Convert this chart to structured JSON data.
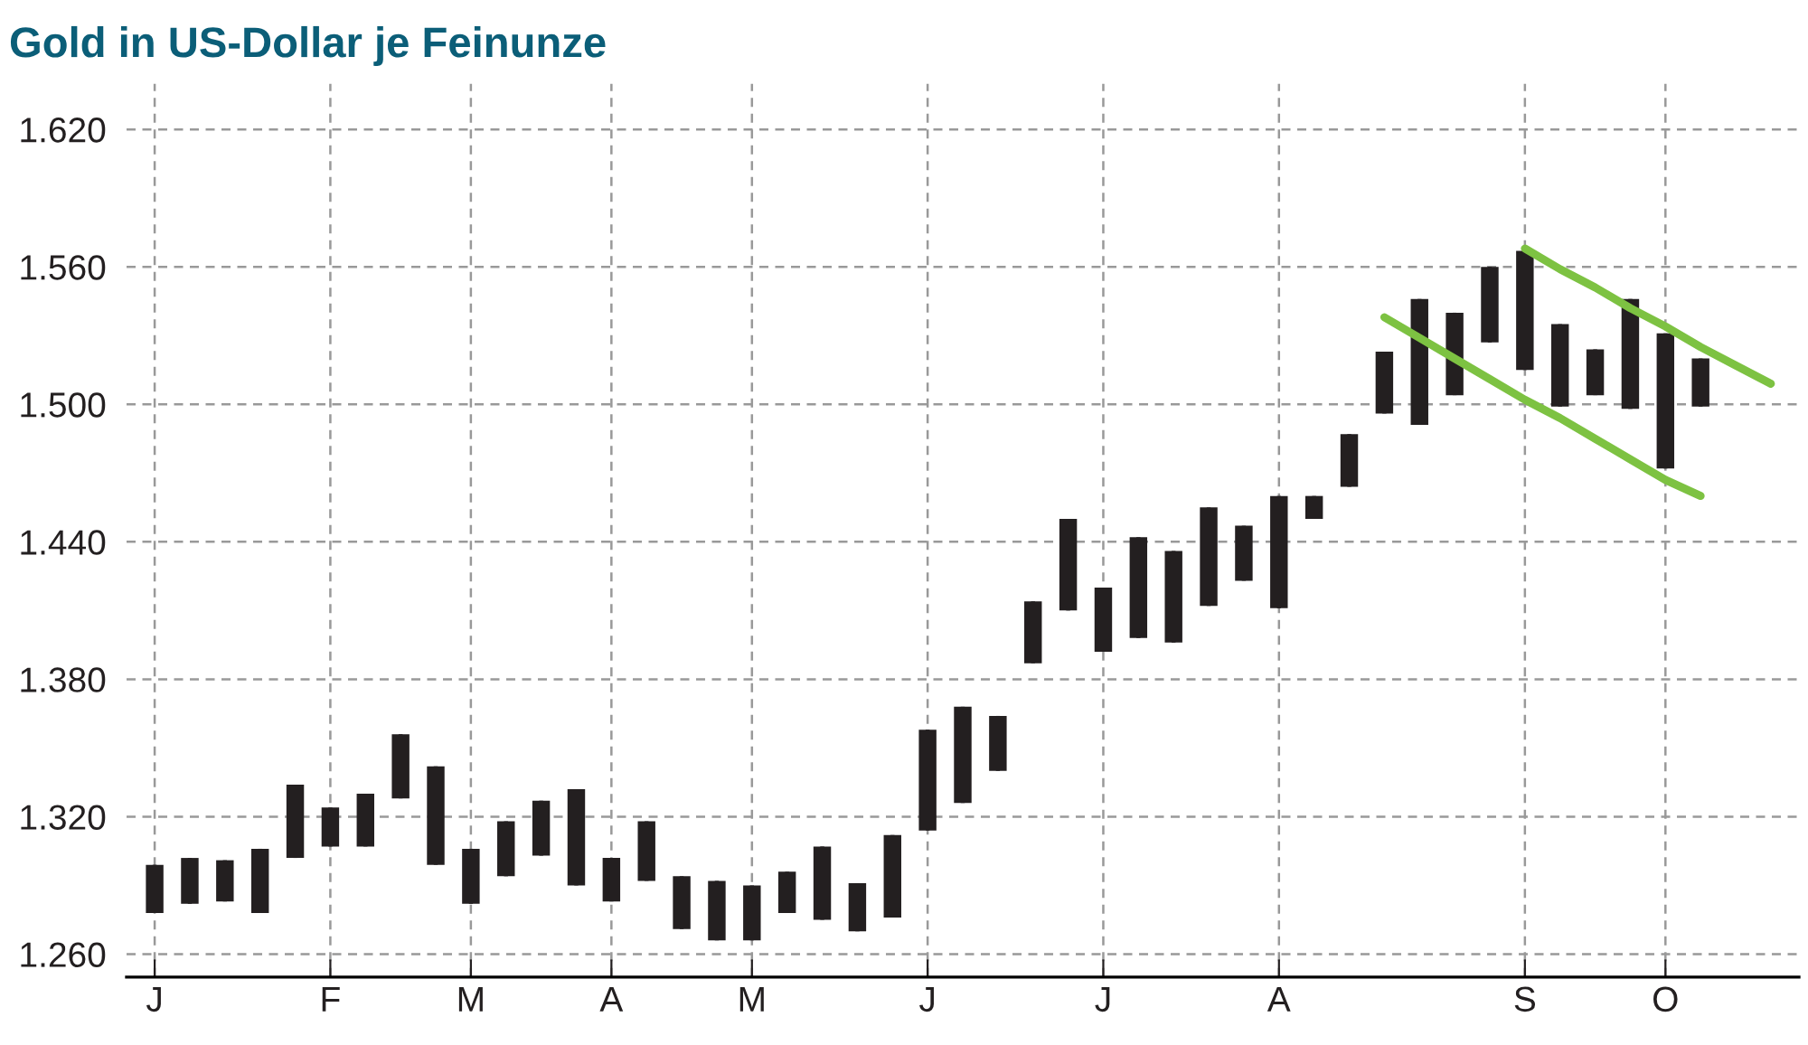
{
  "chart_data": {
    "type": "candlestick",
    "title": "Gold in US-Dollar je Feinunze",
    "categories": [
      "J",
      null,
      null,
      null,
      null,
      "F",
      null,
      null,
      null,
      "M",
      null,
      null,
      null,
      "A",
      null,
      null,
      null,
      "M",
      null,
      null,
      null,
      null,
      "J",
      null,
      null,
      null,
      null,
      "J",
      null,
      null,
      null,
      null,
      "A",
      null,
      null,
      null,
      null,
      null,
      null,
      "S",
      null,
      null,
      null,
      "O",
      null,
      null,
      null
    ],
    "ohlc": [
      [
        1278,
        1299,
        1278,
        1299
      ],
      [
        1282,
        1302,
        1282,
        1302
      ],
      [
        1283,
        1301,
        1283,
        1301
      ],
      [
        1278,
        1306,
        1278,
        1306
      ],
      [
        1302,
        1334,
        1302,
        1334
      ],
      [
        1307,
        1324,
        1307,
        1324
      ],
      [
        1307,
        1330,
        1307,
        1330
      ],
      [
        1328,
        1356,
        1328,
        1356
      ],
      [
        1299,
        1342,
        1299,
        1342
      ],
      [
        1282,
        1306,
        1282,
        1306
      ],
      [
        1294,
        1318,
        1294,
        1318
      ],
      [
        1303,
        1327,
        1303,
        1327
      ],
      [
        1290,
        1332,
        1290,
        1332
      ],
      [
        1283,
        1302,
        1283,
        1302
      ],
      [
        1292,
        1318,
        1292,
        1318
      ],
      [
        1271,
        1294,
        1271,
        1294
      ],
      [
        1266,
        1292,
        1266,
        1292
      ],
      [
        1266,
        1290,
        1266,
        1290
      ],
      [
        1278,
        1296,
        1278,
        1296
      ],
      [
        1275,
        1307,
        1275,
        1307
      ],
      [
        1270,
        1291,
        1270,
        1291
      ],
      [
        1276,
        1312,
        1276,
        1312
      ],
      [
        1314,
        1358,
        1314,
        1358
      ],
      [
        1326,
        1368,
        1326,
        1368
      ],
      [
        1340,
        1364,
        1340,
        1364
      ],
      [
        1387,
        1414,
        1387,
        1414
      ],
      [
        1410,
        1450,
        1410,
        1450
      ],
      [
        1392,
        1420,
        1392,
        1420
      ],
      [
        1398,
        1442,
        1398,
        1442
      ],
      [
        1396,
        1436,
        1396,
        1436
      ],
      [
        1412,
        1455,
        1412,
        1455
      ],
      [
        1423,
        1447,
        1423,
        1447
      ],
      [
        1411,
        1460,
        1411,
        1460
      ],
      [
        1450,
        1460,
        1450,
        1460
      ],
      [
        1464,
        1487,
        1464,
        1487
      ],
      [
        1496,
        1523,
        1496,
        1523
      ],
      [
        1491,
        1546,
        1491,
        1546
      ],
      [
        1504,
        1540,
        1504,
        1540
      ],
      [
        1527,
        1560,
        1527,
        1560
      ],
      [
        1515,
        1567,
        1515,
        1567
      ],
      [
        1499,
        1535,
        1499,
        1535
      ],
      [
        1504,
        1524,
        1504,
        1524
      ],
      [
        1498,
        1546,
        1498,
        1546
      ],
      [
        1472,
        1531,
        1472,
        1531
      ],
      [
        1499,
        1520,
        1499,
        1520
      ],
      null,
      null
    ],
    "color": "#231f20",
    "series": [
      {
        "type": "line",
        "color": "#7dc242",
        "values": [
          null,
          null,
          null,
          null,
          null,
          null,
          null,
          null,
          null,
          null,
          null,
          null,
          null,
          null,
          null,
          null,
          null,
          null,
          null,
          null,
          null,
          null,
          null,
          null,
          null,
          null,
          null,
          null,
          null,
          null,
          null,
          null,
          null,
          null,
          null,
          null,
          null,
          null,
          null,
          1568,
          1559,
          1551,
          1542,
          1534,
          1525,
          1517,
          1509
        ]
      },
      {
        "type": "line",
        "color": "#7dc242",
        "values": [
          null,
          null,
          null,
          null,
          null,
          null,
          null,
          null,
          null,
          null,
          null,
          null,
          null,
          null,
          null,
          null,
          null,
          null,
          null,
          null,
          null,
          null,
          null,
          null,
          null,
          null,
          null,
          null,
          null,
          null,
          null,
          null,
          null,
          null,
          null,
          1538,
          1529,
          1520,
          1511,
          1502,
          1494,
          1485,
          1476,
          1467,
          1460,
          null,
          null
        ]
      }
    ],
    "ylim": [
      1250,
      1640
    ],
    "yticks": [
      {
        "value": 1260,
        "label": "1.260"
      },
      {
        "value": 1320,
        "label": "1.320"
      },
      {
        "value": 1380,
        "label": "1.380"
      },
      {
        "value": 1440,
        "label": "1.440"
      },
      {
        "value": 1500,
        "label": "1.500"
      },
      {
        "value": 1560,
        "label": "1.560"
      },
      {
        "value": 1620,
        "label": "1.620"
      }
    ],
    "grid": true
  }
}
